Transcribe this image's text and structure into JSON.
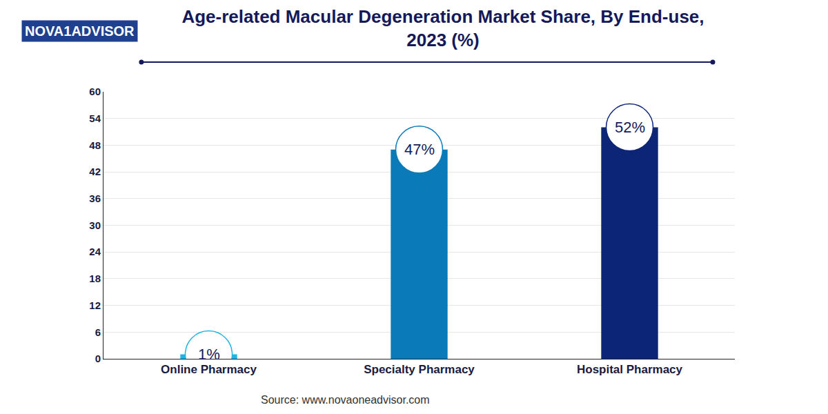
{
  "chart_data": {
    "type": "bar",
    "title": "Age-related Macular Degeneration Market Share, By End-use, 2023 (%)",
    "logo": "NOVA1ADVISOR",
    "source": "Source: www.novaoneadvisor.com",
    "categories": [
      "Online Pharmacy",
      "Specialty Pharmacy",
      "Hospital Pharmacy"
    ],
    "values": [
      1,
      47,
      52
    ],
    "value_labels": [
      "1%",
      "47%",
      "52%"
    ],
    "colors": [
      "#1db4e6",
      "#0a7bb8",
      "#0c2577"
    ],
    "ylim": [
      0,
      60
    ],
    "yticks": [
      0,
      6,
      12,
      18,
      24,
      30,
      36,
      42,
      48,
      54,
      60
    ],
    "grid": true,
    "data_labels": true
  }
}
